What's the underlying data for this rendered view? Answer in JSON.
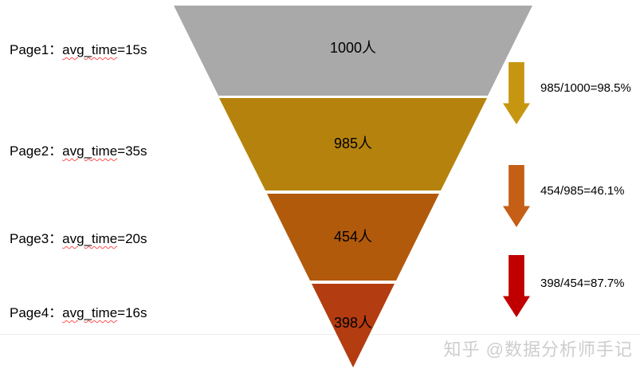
{
  "chart_data": {
    "type": "funnel",
    "orientation": "inverted-pyramid",
    "stages": [
      {
        "page": "Page1",
        "avg_time": "15s",
        "value": 1000,
        "label": "1000人",
        "color": "#A9A9A9"
      },
      {
        "page": "Page2",
        "avg_time": "35s",
        "value": 985,
        "label": "985人",
        "color": "#B5830D"
      },
      {
        "page": "Page3",
        "avg_time": "20s",
        "value": 454,
        "label": "454人",
        "color": "#B15A0C"
      },
      {
        "page": "Page4",
        "avg_time": "16s",
        "value": 398,
        "label": "398人",
        "color": "#B33C10"
      }
    ],
    "conversions": [
      {
        "label": "985/1000=98.5%",
        "from": 1000,
        "to": 985,
        "rate_pct": 98.5,
        "arrow_color": "#C79611"
      },
      {
        "label": "454/985=46.1%",
        "from": 985,
        "to": 454,
        "rate_pct": 46.1,
        "arrow_color": "#C55F16"
      },
      {
        "label": "398/454=87.7%",
        "from": 454,
        "to": 398,
        "rate_pct": 87.7,
        "arrow_color": "#C00000"
      }
    ],
    "legend_position": "none",
    "grid": false
  },
  "left_labels": [
    {
      "prefix": "Page1：",
      "underlined": "avg_time",
      "suffix": "=15s"
    },
    {
      "prefix": "Page2：",
      "underlined": "avg_time",
      "suffix": "=35s"
    },
    {
      "prefix": "Page3：",
      "underlined": "avg_time",
      "suffix": "=20s"
    },
    {
      "prefix": "Page4：",
      "underlined": "avg_time",
      "suffix": "=16s"
    }
  ],
  "watermark": "知乎 @数据分析师手记",
  "colors": {
    "stage_gray": "#A9A9A9",
    "stage_gold": "#B5830D",
    "stage_orange": "#B15A0C",
    "stage_red": "#B33C10",
    "arrow_gold": "#C79611",
    "arrow_orange": "#C55F16",
    "arrow_red": "#C00000",
    "watermark_gray": "#CDCDCD"
  }
}
